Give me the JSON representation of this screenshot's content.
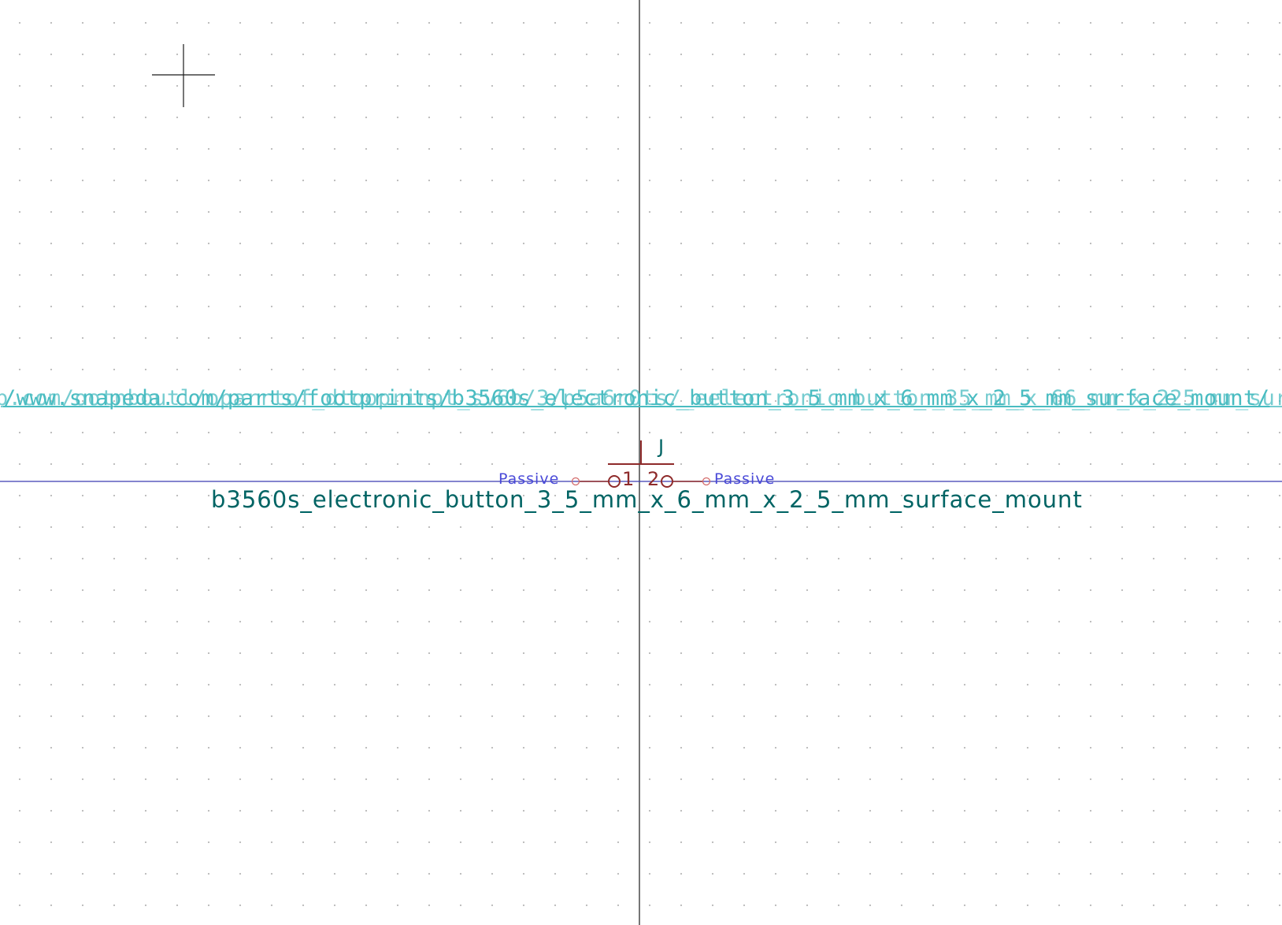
{
  "editor": {
    "footprint_url": "/www.snapeda.com/parts/footprints/b3560s_electronic_button_3_5_mm_x_6_mm_x_2_5_mm_surface_mount/",
    "footprint_url_ghost": "p.com/ootnboutl/oparrtof_dtooprinpt_sv6b/3/p5a6r0ts/_eelectronic_button_35_mm_x_66_mm_x_225_mm_surface_mount/"
  },
  "symbol": {
    "reference": "J",
    "value": "b3560s_electronic_button_3_5_mm_x_6_mm_x_2_5_mm_surface_mount",
    "pins": [
      {
        "number": "1",
        "type": "Passive"
      },
      {
        "number": "2",
        "type": "Passive"
      }
    ]
  },
  "colors": {
    "background": "#ffffff",
    "grid_dot": "#b8b8b8",
    "field_text": "#006464",
    "footprint_text": "#49bcc1",
    "pin_body": "#8e2a2a",
    "pin_type": "#4a4ad8",
    "axis": "#1a1a1a",
    "axis_x": "#3a3ab0"
  }
}
